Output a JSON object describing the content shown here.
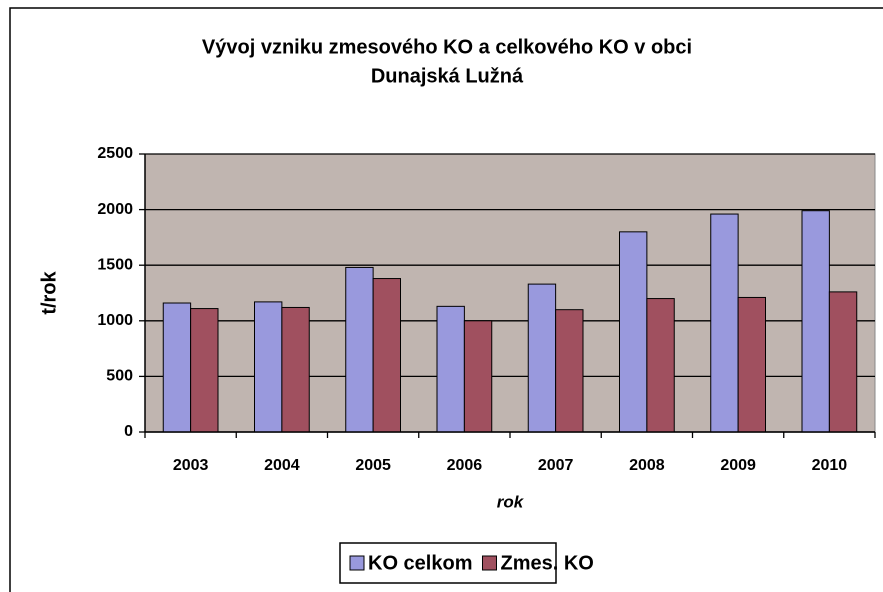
{
  "chart_data": {
    "type": "bar",
    "title": [
      "Vývoj vzniku zmesového KO a celkového KO v obci",
      "Dunajská Lužná"
    ],
    "x_label": "rok",
    "y_label": "t/rok",
    "categories": [
      "2003",
      "2004",
      "2005",
      "2006",
      "2007",
      "2008",
      "2009",
      "2010"
    ],
    "series": [
      {
        "name": "KO celkom",
        "color": "#9999dd",
        "values": [
          1160,
          1170,
          1480,
          1130,
          1330,
          1800,
          1960,
          1990
        ]
      },
      {
        "name": "Zmes. KO",
        "color": "#a0505f",
        "values": [
          1110,
          1120,
          1380,
          1000,
          1100,
          1200,
          1210,
          1260
        ]
      }
    ],
    "ylim": [
      0,
      2500
    ],
    "yticks": [
      0,
      500,
      1000,
      1500,
      2000,
      2500
    ],
    "grid": true,
    "plot_background": "#c0b5b0",
    "legend": "bottom"
  }
}
